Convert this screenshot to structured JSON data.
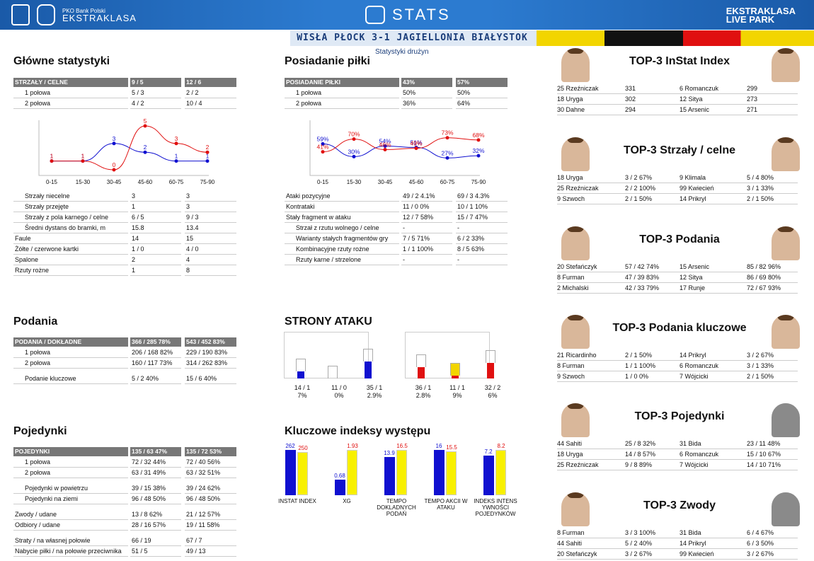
{
  "header": {
    "league_small": "PKO Bank Polski",
    "league": "EKSTRAKLASA",
    "title": "STATS",
    "right_logo1": "EKSTRAKLASA",
    "right_logo2": "LIVE PARK"
  },
  "match": "WISŁA PŁOCK 3-1 JAGIELLONIA BIAŁYSTOK",
  "subtitle": "Statystyki drużyn",
  "main_stats": {
    "title": "Główne statystyki",
    "head": [
      "STRZAŁY / CELNE",
      "9 / 5",
      "12 / 6"
    ],
    "halves": [
      [
        "1 połowa",
        "5 / 3",
        "2 / 2"
      ],
      [
        "2 połowa",
        "4 / 2",
        "10 / 4"
      ]
    ],
    "rows": [
      [
        "Strzały niecelne",
        "3",
        "3"
      ],
      [
        "Strzały przejęte",
        "1",
        "3"
      ],
      [
        "Strzały z pola karnego / celne",
        "6 / 5",
        "9 / 3"
      ],
      [
        "Średni dystans do bramki, m",
        "15.8",
        "13.4"
      ],
      [
        "Faule",
        "14",
        "15"
      ],
      [
        "Żółte / czerwone kartki",
        "1 / 0",
        "4 / 0"
      ],
      [
        "Spalone",
        "2",
        "4"
      ],
      [
        "Rzuty rożne",
        "1",
        "8"
      ]
    ]
  },
  "possession": {
    "title": "Posiadanie piłki",
    "head": [
      "POSIADANIE PIŁKI",
      "43%",
      "57%"
    ],
    "halves": [
      [
        "1 połowa",
        "50%",
        "50%"
      ],
      [
        "2 połowa",
        "36%",
        "64%"
      ]
    ],
    "rows": [
      [
        "Ataki pozycyjne",
        "49 / 2  4.1%",
        "69 / 3  4.3%"
      ],
      [
        "Kontrataki",
        "11 / 0  0%",
        "10 / 1  10%"
      ],
      [
        "Stały fragment w ataku",
        "12 / 7  58%",
        "15 / 7  47%"
      ],
      [
        "Strzał z rzutu wolnego / celne",
        "-",
        "-"
      ],
      [
        "Warianty stałych fragmentów gry",
        "7 / 5    71%",
        "6 / 2    33%"
      ],
      [
        "Kombinacyjne rzuty rożne",
        "1 / 1    100%",
        "8 / 5    63%"
      ],
      [
        "Rzuty karne /  strzelone",
        "-",
        "-"
      ]
    ]
  },
  "passes": {
    "title": "Podania",
    "head": [
      "PODANIA / DOKŁADNE",
      "366 / 285 78%",
      "543 / 452 83%"
    ],
    "rows": [
      [
        "1 połowa",
        "206 / 168 82%",
        "229 / 190 83%"
      ],
      [
        "2 połowa",
        "160 / 117 73%",
        "314 / 262 83%"
      ],
      [
        "Podanie kluczowe",
        "5 / 2          40%",
        "15 / 6          40%"
      ]
    ]
  },
  "duels": {
    "title": "Pojedynki",
    "head": [
      "POJEDYNKI",
      "135 / 63 47%",
      "135 / 72 53%"
    ],
    "rows": [
      [
        "1 połowa",
        "72 / 32    44%",
        "72 / 40    56%"
      ],
      [
        "2 połowa",
        "63 / 31    49%",
        "63 / 32    51%"
      ],
      [
        "Pojedynki w powietrzu",
        "39 / 15    38%",
        "39 / 24    62%"
      ],
      [
        "Pojedynki na ziemi",
        "96 / 48    50%",
        "96 / 48    50%"
      ],
      [
        "Zwody / udane",
        "13 / 8      62%",
        "21 / 12    57%"
      ],
      [
        "Odbiory / udane",
        "28 / 16    57%",
        "19 / 11    58%"
      ],
      [
        "Straty / na własnej połowie",
        "66 / 19",
        "67 / 7"
      ],
      [
        "Nabycie piłki / na połowie przeciwnika",
        "51 / 5",
        "49 / 13"
      ]
    ]
  },
  "attack_sides": {
    "title": "STRONY ATAKU",
    "home": [
      [
        "14 / 1",
        "7%"
      ],
      [
        "11 / 0",
        "0%"
      ],
      [
        "35 / 1",
        "2.9%"
      ]
    ],
    "away": [
      [
        "36 / 1",
        "2.8%"
      ],
      [
        "11 / 1",
        "9%"
      ],
      [
        "32 / 2",
        "6%"
      ]
    ]
  },
  "indices": {
    "title": "Kluczowe indeksy występu",
    "labels": [
      "INSTAT INDEX",
      "XG",
      "TEMPO DOKLADNYCH PODAŃ",
      "TEMPO AKCII W ATAKU",
      "INDEKS INTENS YWNOŚCI POJEDYNKÓW"
    ],
    "home": [
      "262",
      "0.68",
      "13.9",
      "16",
      "7.2"
    ],
    "away": [
      "250",
      "1.93",
      "16.5",
      "15.5",
      "8.2"
    ],
    "home_ratio": [
      1.0,
      0.35,
      0.84,
      1.0,
      0.88
    ],
    "away_ratio": [
      0.95,
      1.0,
      1.0,
      0.97,
      1.0
    ]
  },
  "chart_data": [
    {
      "type": "line",
      "title": "",
      "categories": [
        "0-15",
        "15-30",
        "30-45",
        "45-60",
        "60-75",
        "75-90"
      ],
      "series": [
        {
          "values": [
            1,
            1,
            3,
            2,
            1,
            1
          ],
          "color": "#1010d0"
        },
        {
          "values": [
            1,
            1,
            0,
            5,
            3,
            2
          ],
          "color": "#e01010"
        }
      ]
    },
    {
      "type": "line",
      "title": "",
      "categories": [
        "0-15",
        "15-30",
        "30-45",
        "45-60",
        "60-75",
        "75-90"
      ],
      "series": [
        {
          "values": [
            59,
            30,
            54,
            51,
            27,
            32
          ],
          "color": "#1010d0"
        },
        {
          "values": [
            41,
            70,
            46,
            49,
            73,
            68
          ],
          "color": "#e01010"
        }
      ]
    }
  ],
  "tops": [
    {
      "title": "TOP-3 InStat Index",
      "rows": [
        [
          "25 Rzeźniczak",
          "331",
          "6   Romanczuk",
          "299"
        ],
        [
          "18 Uryga",
          "302",
          "12 Sitya",
          "273"
        ],
        [
          "30 Dahne",
          "294",
          "15 Arsenic",
          "271"
        ]
      ]
    },
    {
      "title": "TOP-3 Strzały / celne",
      "rows": [
        [
          "18 Uryga",
          "3 / 2  67%",
          "9   Klimala",
          "5 / 4  80%"
        ],
        [
          "25 Rzeźniczak",
          "2 / 2  100%",
          "99 Kwiecień",
          "3 / 1  33%"
        ],
        [
          "9   Szwoch",
          "2 / 1  50%",
          "14 Prikryl",
          "2 / 1  50%"
        ]
      ]
    },
    {
      "title": "TOP-3 Podania",
      "rows": [
        [
          "20 Stefańczyk",
          "57 / 42 74%",
          "15 Arsenic",
          "85 / 82 96%"
        ],
        [
          "8   Furman",
          "47 / 39 83%",
          "12 Sitya",
          "86 / 69 80%"
        ],
        [
          "2   Michalski",
          "42 / 33 79%",
          "17 Runje",
          "72 / 67 93%"
        ]
      ]
    },
    {
      "title": "TOP-3 Podania kluczowe",
      "rows": [
        [
          "21 Ricardinho",
          "2 / 1  50%",
          "14 Prikryl",
          "3 / 2  67%"
        ],
        [
          "8   Furman",
          "1 / 1  100%",
          "6   Romanczuk",
          "3 / 1  33%"
        ],
        [
          "9   Szwoch",
          "1 / 0  0%",
          "7   Wójcicki",
          "2 / 1  50%"
        ]
      ]
    },
    {
      "title": "TOP-3 Pojedynki",
      "rows": [
        [
          "44 Sahiti",
          "25 / 8 32%",
          "31 Bida",
          "23 / 11 48%"
        ],
        [
          "18 Uryga",
          "14 / 8 57%",
          "6   Romanczuk",
          "15 / 10 67%"
        ],
        [
          "25 Rzeźniczak",
          "9 / 8   89%",
          "7   Wójcicki",
          "14 / 10 71%"
        ]
      ]
    },
    {
      "title": "TOP-3 Zwody",
      "rows": [
        [
          "8   Furman",
          "3 / 3  100%",
          "31 Bida",
          "6 / 4  67%"
        ],
        [
          "44 Sahiti",
          "5 / 2  40%",
          "14 Prikryl",
          "6 / 3  50%"
        ],
        [
          "20 Stefańczyk",
          "3 / 2  67%",
          "99 Kwiecień",
          "3 / 2  67%"
        ]
      ]
    }
  ]
}
